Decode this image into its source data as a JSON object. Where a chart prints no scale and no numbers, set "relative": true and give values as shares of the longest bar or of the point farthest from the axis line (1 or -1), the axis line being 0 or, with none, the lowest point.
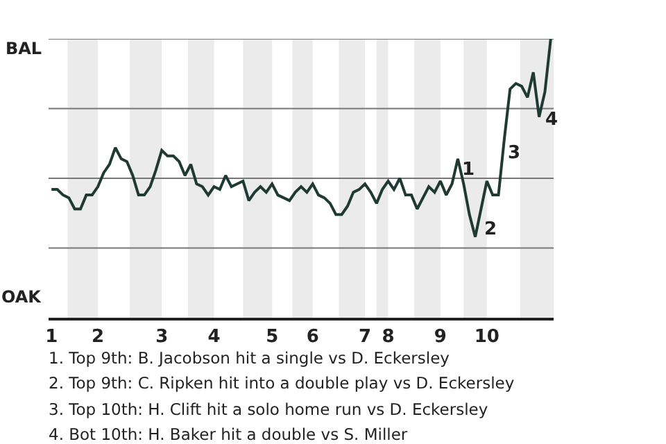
{
  "chart_data": {
    "type": "line",
    "categories": [
      "1",
      null,
      null,
      null,
      null,
      null,
      null,
      null,
      "2",
      null,
      null,
      null,
      null,
      null,
      null,
      null,
      null,
      null,
      null,
      "3",
      null,
      null,
      null,
      null,
      null,
      null,
      null,
      null,
      "4",
      null,
      null,
      null,
      null,
      null,
      null,
      null,
      null,
      null,
      "5",
      null,
      null,
      null,
      null,
      null,
      null,
      "6",
      null,
      null,
      null,
      null,
      null,
      null,
      null,
      null,
      "7",
      null,
      null,
      null,
      "8",
      null,
      null,
      null,
      null,
      null,
      null,
      null,
      null,
      "9",
      null,
      null,
      null,
      null,
      null,
      null,
      null,
      "10",
      null,
      null,
      null,
      null,
      null,
      null,
      null,
      null,
      null,
      null,
      null
    ],
    "relative": true,
    "series": [
      {
        "color": "#1f3a33",
        "values": [
          0.46,
          0.46,
          0.44,
          0.43,
          0.39,
          0.39,
          0.44,
          0.44,
          0.47,
          0.52,
          0.55,
          0.61,
          0.57,
          0.56,
          0.51,
          0.44,
          0.44,
          0.47,
          0.53,
          0.6,
          0.58,
          0.58,
          0.56,
          0.51,
          0.55,
          0.48,
          0.47,
          0.44,
          0.47,
          0.46,
          0.51,
          0.47,
          0.48,
          0.49,
          0.42,
          0.45,
          0.47,
          0.45,
          0.48,
          0.44,
          0.43,
          0.42,
          0.45,
          0.47,
          0.45,
          0.48,
          0.44,
          0.43,
          0.41,
          0.37,
          0.37,
          0.4,
          0.45,
          0.46,
          0.48,
          0.45,
          0.41,
          0.46,
          0.49,
          0.46,
          0.5,
          0.44,
          0.44,
          0.39,
          0.43,
          0.47,
          0.45,
          0.49,
          0.44,
          0.48,
          0.57,
          0.48,
          0.37,
          0.29,
          0.39,
          0.49,
          0.44,
          0.44,
          0.64,
          0.82,
          0.84,
          0.83,
          0.79,
          0.88,
          0.72,
          0.81,
          1.0
        ],
        "name": null
      }
    ],
    "grid": false,
    "marker": "none",
    "ref_lines": [
      {
        "axis": "y",
        "value": 0.25,
        "color": "#777777"
      },
      {
        "axis": "y",
        "value": 0.5,
        "color": "#777777"
      },
      {
        "axis": "y",
        "value": 0.75,
        "color": "#777777"
      },
      {
        "axis": "y",
        "value": 1,
        "color": "#777777"
      }
    ],
    "annotations": [
      "BAL",
      "OAK",
      "1",
      "2",
      "3",
      "4",
      "1. Top 9th: B. Jacobson hit a single vs D. Eckersley",
      "2. Top 9th: C. Ripken hit into a double play vs D. Eckersley",
      "3. Top 10th: H. Clift hit a solo home run vs D. Eckersley",
      "4. Bot 10th: H. Baker hit a double vs S. Miller"
    ]
  }
}
